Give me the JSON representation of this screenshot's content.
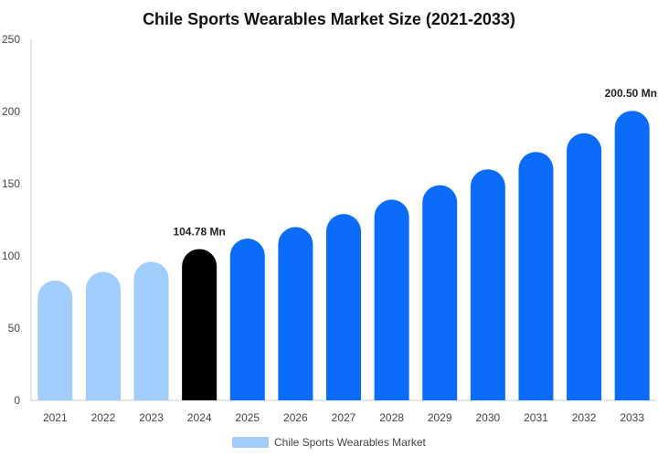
{
  "chart_data": {
    "type": "bar",
    "title": "Chile Sports Wearables Market Size (2021-2033)",
    "xlabel": "",
    "ylabel": "",
    "categories": [
      "2021",
      "2022",
      "2023",
      "2024",
      "2025",
      "2026",
      "2027",
      "2028",
      "2029",
      "2030",
      "2031",
      "2032",
      "2033"
    ],
    "series": [
      {
        "name": "Chile Sports Wearables Market",
        "values": [
          83,
          89,
          96,
          104.78,
          112,
          120,
          129,
          139,
          149,
          160,
          172,
          185,
          200.5
        ]
      }
    ],
    "ylim": [
      0,
      250
    ],
    "yticks": [
      "0",
      "50",
      "100",
      "150",
      "200",
      "250"
    ],
    "data_labels": [
      {
        "index": 3,
        "text": "104.78 Mn"
      },
      {
        "index": 12,
        "text": "200.50 Mn"
      }
    ],
    "grid": false,
    "legend": "bottom",
    "colors": {
      "history": "#a0cdfb",
      "current": "#000000",
      "forecast": "#0a6cf9",
      "legend": "#a0cdfb",
      "axis": "#cccccc"
    },
    "current_index": 3
  }
}
